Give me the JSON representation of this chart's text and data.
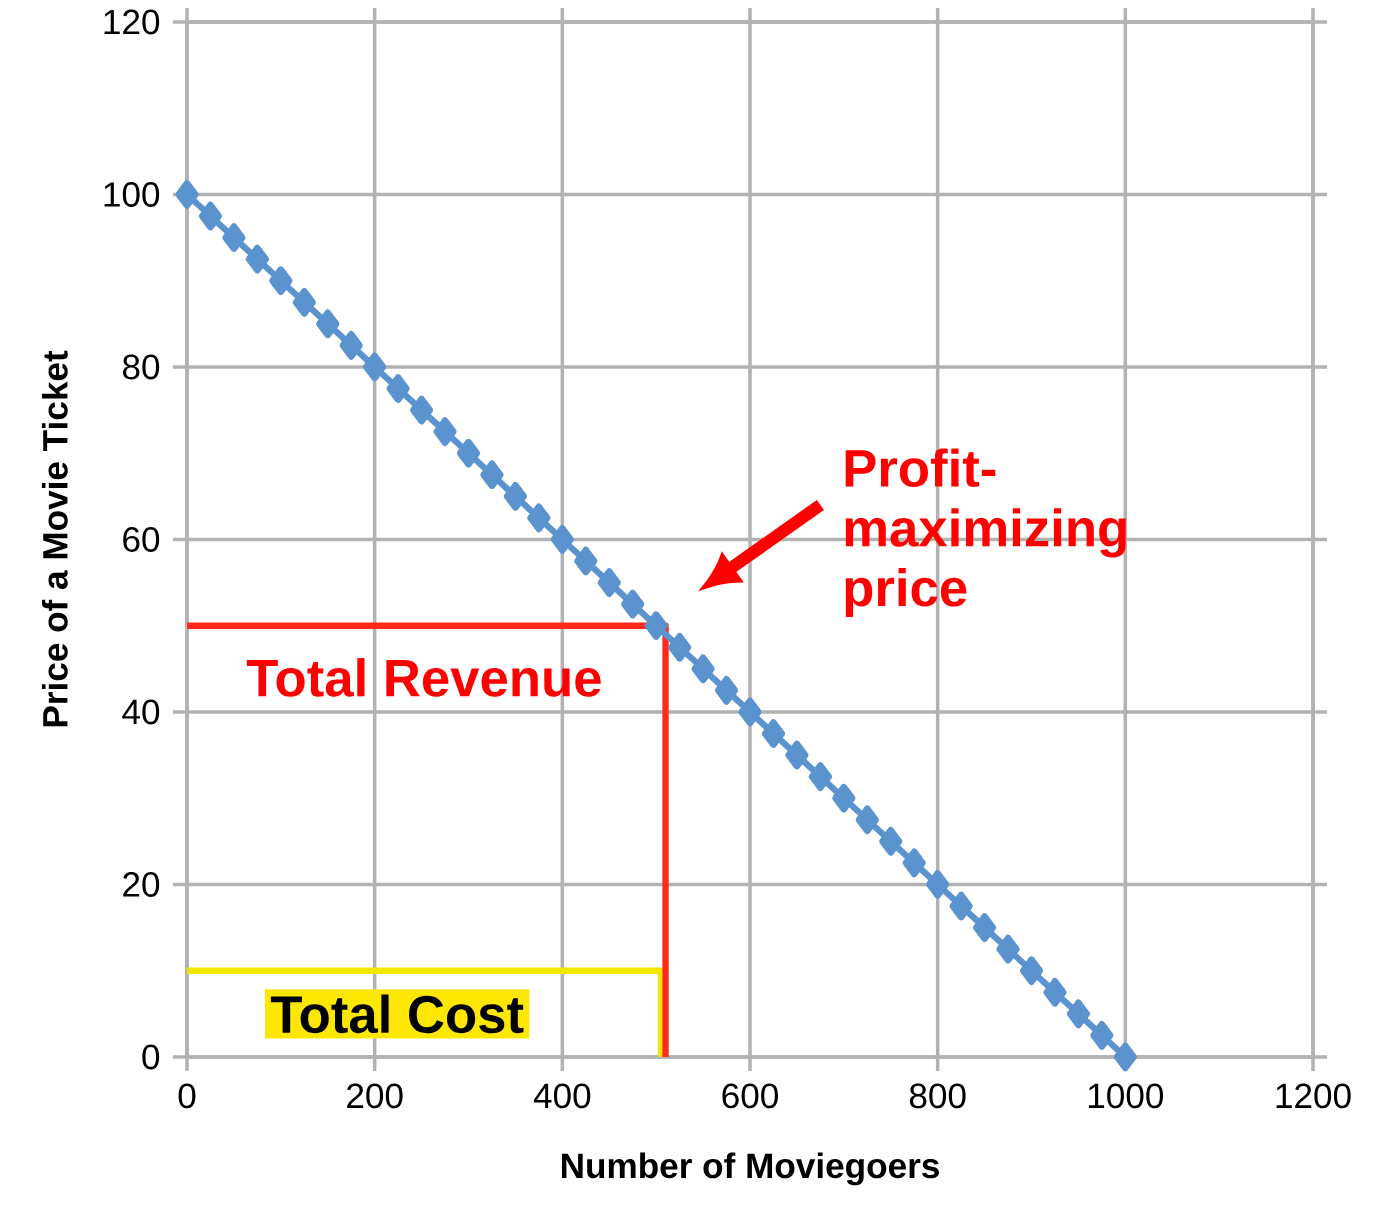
{
  "chart_data": {
    "type": "line",
    "xlabel": "Number of Moviegoers",
    "ylabel": "Price of a Movie Ticket",
    "xlim": [
      0,
      1200
    ],
    "xticks": [
      0,
      200,
      400,
      600,
      800,
      1000,
      1200
    ],
    "ylim": [
      0,
      120
    ],
    "yticks": [
      0,
      20,
      40,
      60,
      80,
      100,
      120
    ],
    "grid": true,
    "marker": "diamond",
    "series": [
      {
        "color": "#5b93cf",
        "x": [
          0,
          25,
          50,
          75,
          100,
          125,
          150,
          175,
          200,
          225,
          250,
          275,
          300,
          325,
          350,
          375,
          400,
          425,
          450,
          475,
          500,
          525,
          550,
          575,
          600,
          625,
          650,
          675,
          700,
          725,
          750,
          775,
          800,
          825,
          850,
          875,
          900,
          925,
          950,
          975,
          1000
        ],
        "values": [
          100,
          97.5,
          95,
          92.5,
          90,
          87.5,
          85,
          82.5,
          80,
          77.5,
          75,
          72.5,
          70,
          67.5,
          65,
          62.5,
          60,
          57.5,
          55,
          52.5,
          50,
          47.5,
          45,
          42.5,
          40,
          37.5,
          35,
          32.5,
          30,
          27.5,
          25,
          22.5,
          20,
          17.5,
          15,
          12.5,
          10,
          7.5,
          5,
          2.5,
          0
        ]
      },
      {
        "color": "#ff2a1a",
        "marker": "none",
        "x": [
          0,
          510,
          510
        ],
        "values": [
          50,
          50,
          0
        ]
      },
      {
        "color": "#f2e600",
        "marker": "none",
        "x": [
          0,
          505,
          505
        ],
        "values": [
          10,
          10,
          0
        ]
      }
    ],
    "annotations": [
      "Profit-maximizing price",
      "Total Revenue",
      "Total Cost"
    ]
  }
}
